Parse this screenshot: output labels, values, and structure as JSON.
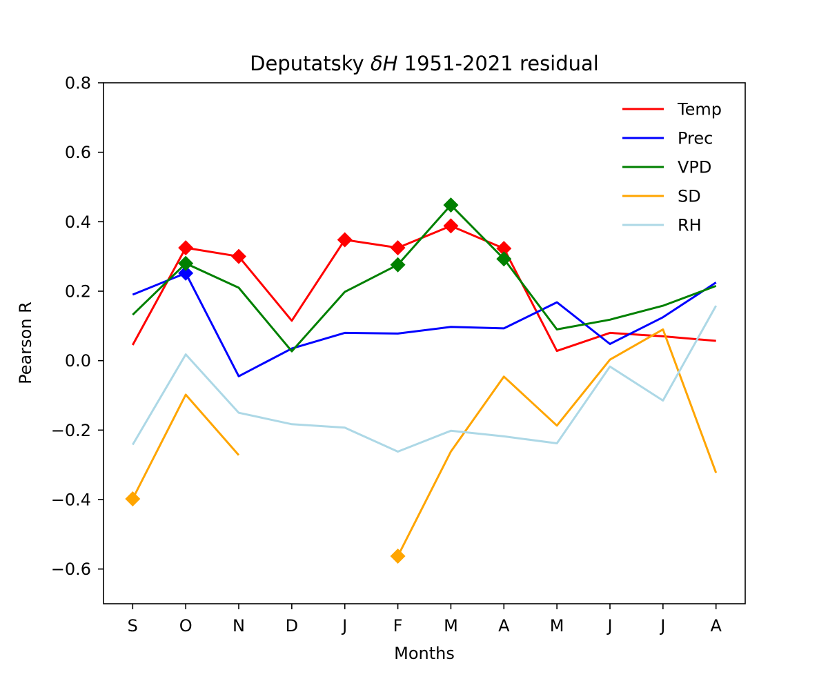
{
  "chart_data": {
    "type": "line",
    "title_prefix": "Deputatsky ",
    "title_symbol": "δH",
    "title_suffix": " 1951-2021 residual",
    "xlabel": "Months",
    "ylabel": "Pearson R",
    "categories": [
      "S",
      "O",
      "N",
      "D",
      "J",
      "F",
      "M",
      "A",
      "M",
      "J",
      "J",
      "A"
    ],
    "ylim": [
      -0.7,
      0.8
    ],
    "yticks": [
      -0.6,
      -0.4,
      -0.2,
      0.0,
      0.2,
      0.4,
      0.6,
      0.8
    ],
    "ytick_labels": [
      "−0.6",
      "−0.4",
      "−0.2",
      "0.0",
      "0.2",
      "0.4",
      "0.6",
      "0.8"
    ],
    "grid": false,
    "legend_position": "top-right",
    "series": [
      {
        "name": "Temp",
        "color": "#ff0000",
        "values": [
          0.045,
          0.325,
          0.3,
          0.115,
          0.348,
          0.325,
          0.388,
          0.323,
          0.028,
          0.08,
          0.07,
          0.057
        ],
        "markers": [
          1,
          2,
          4,
          5,
          6,
          7
        ]
      },
      {
        "name": "Prec",
        "color": "#0000ff",
        "values": [
          0.19,
          0.252,
          -0.045,
          0.035,
          0.08,
          0.078,
          0.097,
          0.093,
          0.168,
          0.048,
          0.125,
          0.225
        ],
        "markers": [
          1
        ]
      },
      {
        "name": "VPD",
        "color": "#008000",
        "values": [
          0.132,
          0.28,
          0.21,
          0.027,
          0.198,
          0.276,
          0.448,
          0.293,
          0.09,
          0.118,
          0.158,
          0.215
        ],
        "markers": [
          1,
          5,
          6,
          7
        ]
      },
      {
        "name": "SD",
        "color": "#ffa500",
        "values": [
          -0.398,
          -0.098,
          -0.272,
          null,
          null,
          -0.563,
          -0.262,
          -0.046,
          -0.187,
          0.003,
          0.09,
          -0.323
        ],
        "markers": [
          0,
          5
        ]
      },
      {
        "name": "RH",
        "color": "#add8e6",
        "values": [
          -0.242,
          0.018,
          -0.15,
          -0.183,
          -0.193,
          -0.262,
          -0.202,
          -0.218,
          -0.238,
          -0.017,
          -0.115,
          0.158
        ],
        "markers": []
      }
    ]
  }
}
